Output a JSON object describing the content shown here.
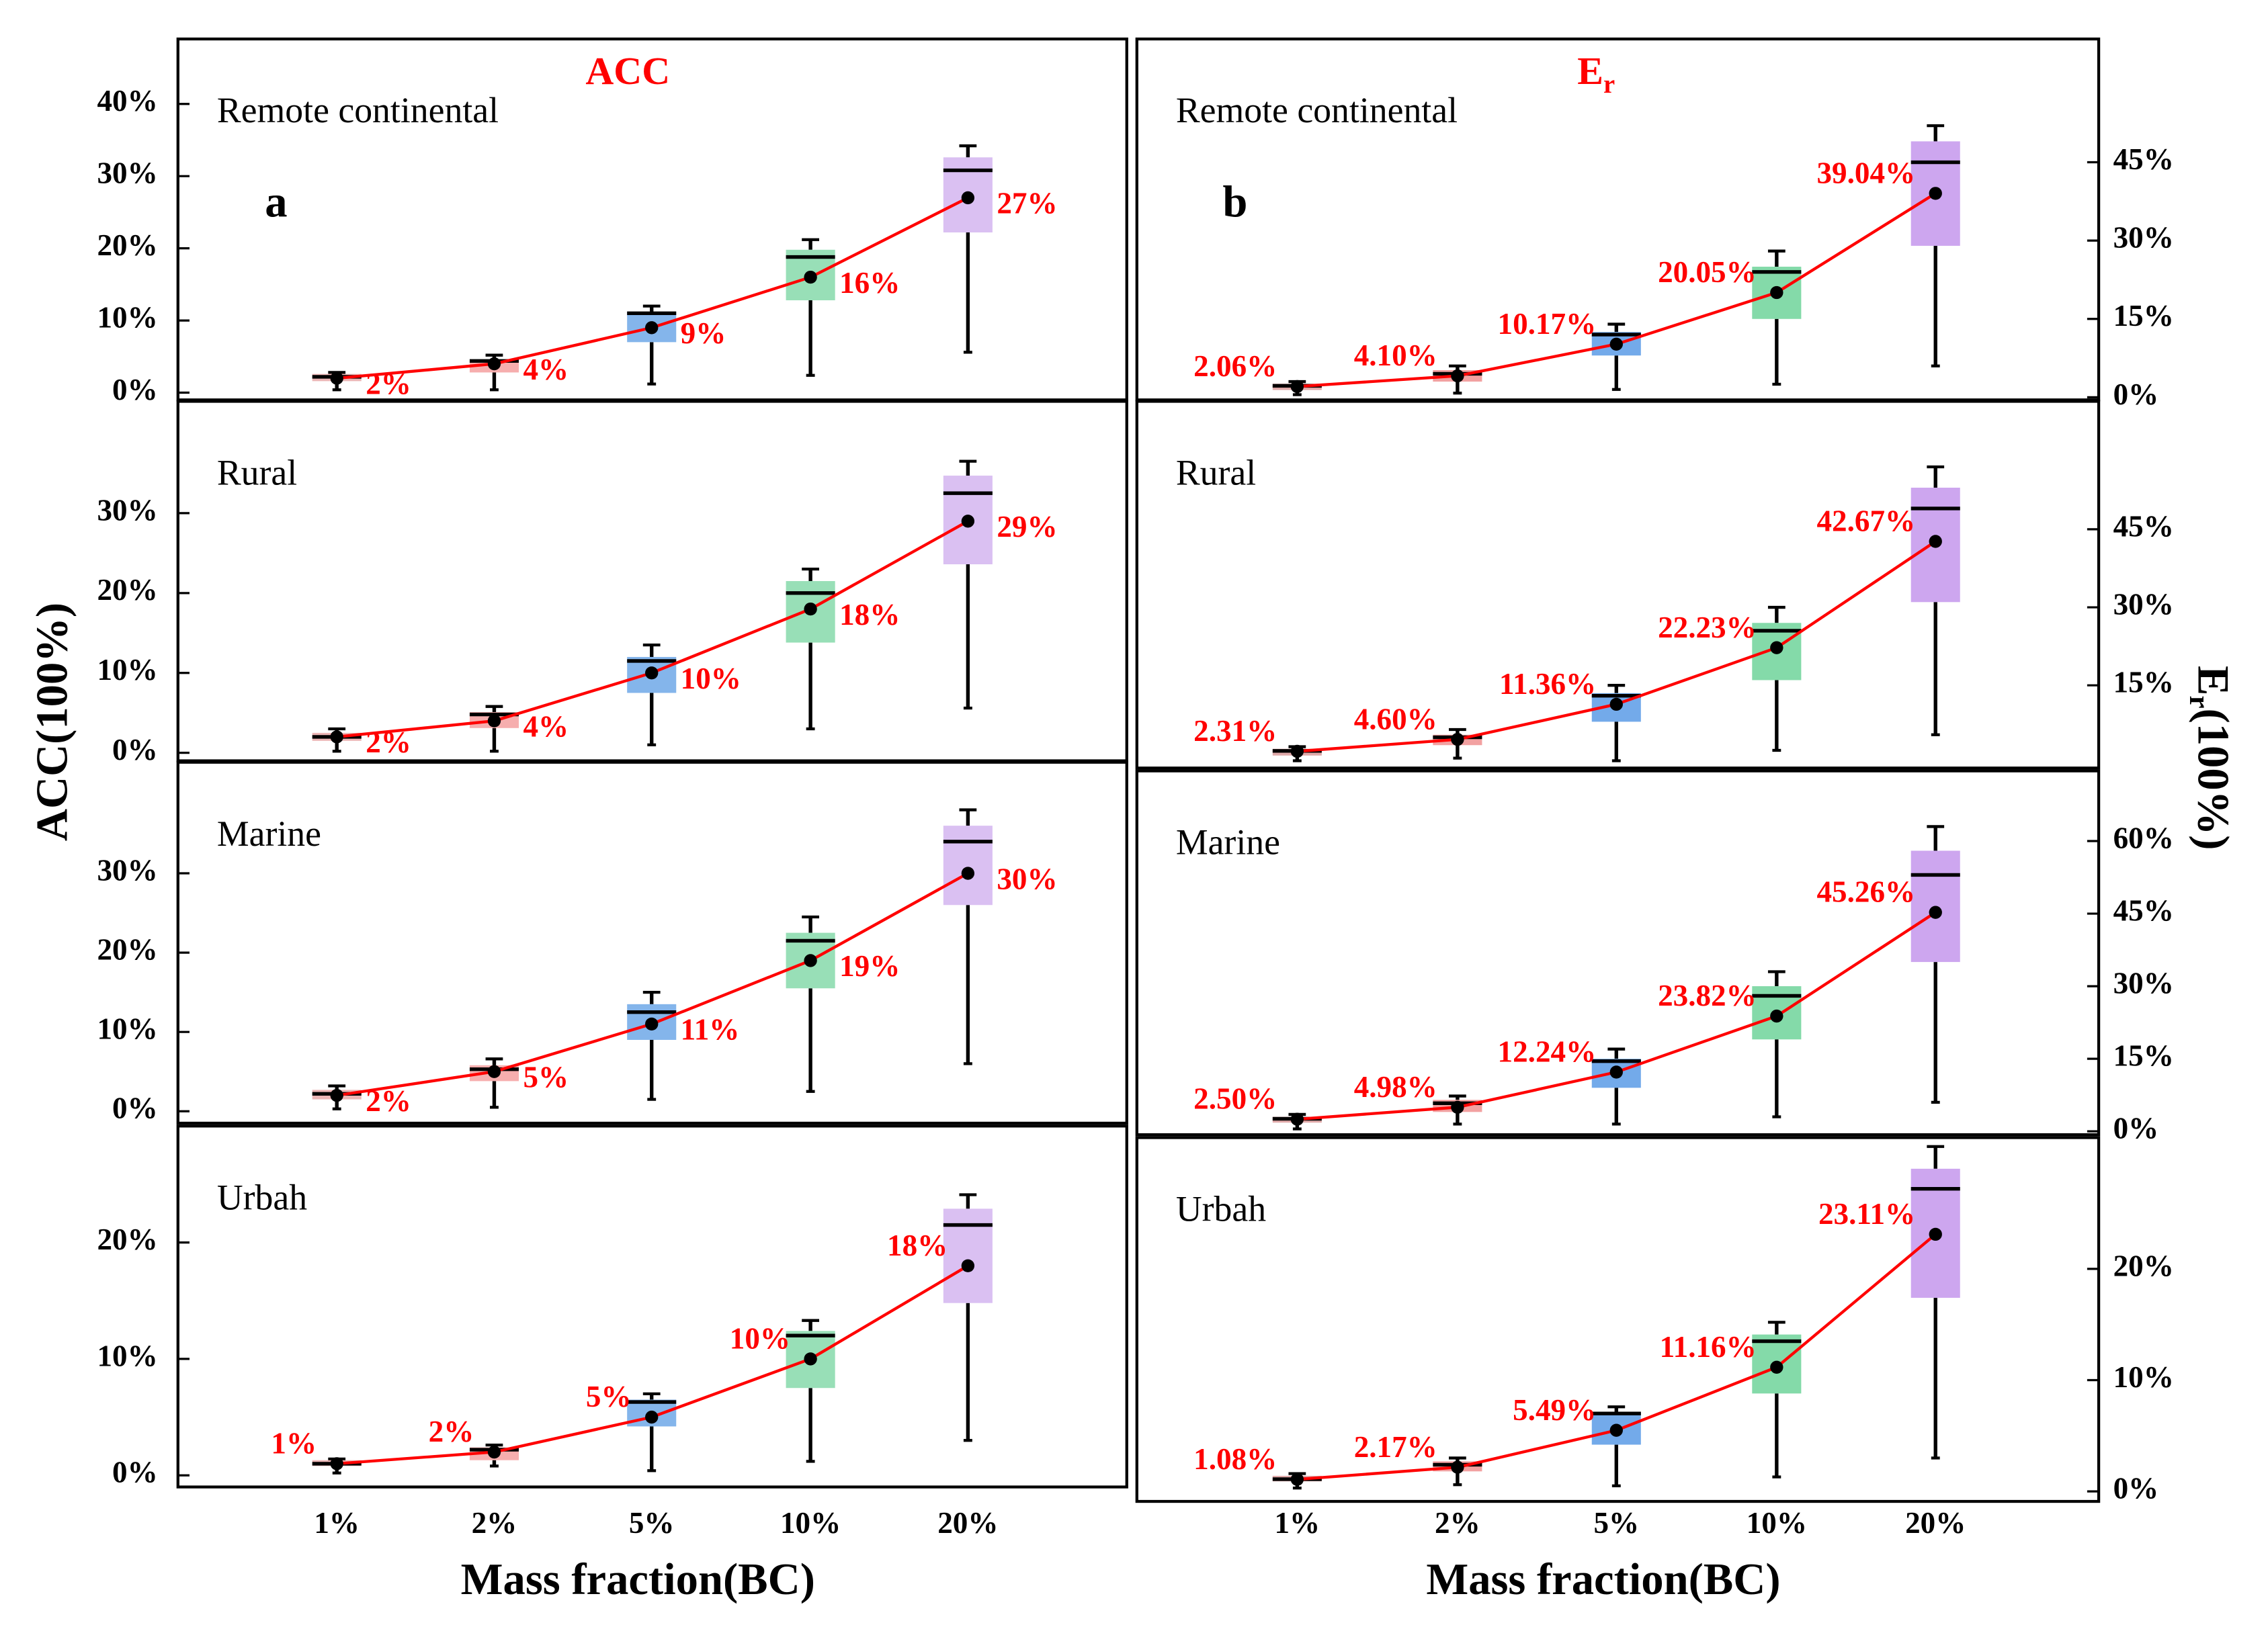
{
  "chart_data": [
    {
      "type": "box",
      "title": "ACC",
      "panel_label": "a",
      "annotation": "Remote continental",
      "ylabel": "ACC(100%)",
      "colors": [
        "#e9a8a8",
        "#f4a0a0",
        "#6fa8e8",
        "#86d9aa",
        "#d4b5f0"
      ],
      "line_color": "#ff0000",
      "whislo": [
        0.4,
        0.4,
        1.2,
        2.4,
        5.6
      ],
      "q1": [
        1.6,
        2.8,
        7,
        12.8,
        22.2
      ],
      "med": [
        2.2,
        4.4,
        11,
        18.8,
        30.8
      ],
      "q3": [
        2.6,
        4.4,
        11.2,
        19.8,
        32.6
      ],
      "whishi": [
        2.8,
        5.2,
        12,
        21.2,
        34.2
      ],
      "values": [
        2,
        4,
        9,
        16,
        27
      ],
      "value_labels": [
        "2%",
        "4%",
        "9%",
        "16%",
        "27%"
      ],
      "ylim": [
        -1,
        49
      ],
      "yticks": [
        {
          "value": 0,
          "label": "0%"
        },
        {
          "value": 10,
          "label": "10%"
        },
        {
          "value": 20,
          "label": "20%"
        },
        {
          "value": 30,
          "label": "30%"
        },
        {
          "value": 40,
          "label": "40%"
        }
      ]
    },
    {
      "type": "box",
      "annotation": "Rural",
      "colors": [
        "#e9a8a8",
        "#f4a0a0",
        "#6fa8e8",
        "#86d9aa",
        "#d4b5f0"
      ],
      "line_color": "#ff0000",
      "whislo": [
        0.2,
        0.2,
        1,
        3,
        5.6
      ],
      "q1": [
        1.5,
        3.1,
        7.5,
        13.8,
        23.6
      ],
      "med": [
        2,
        4.8,
        11.5,
        20,
        32.5
      ],
      "q3": [
        2.5,
        5.1,
        12,
        21.5,
        34.7
      ],
      "whishi": [
        3,
        5.8,
        13.5,
        23,
        36.5
      ],
      "values": [
        2,
        4,
        10,
        18,
        29
      ],
      "value_labels": [
        "2%",
        "4%",
        "10%",
        "18%",
        "29%"
      ],
      "ylim": [
        -1,
        44
      ],
      "yticks": [
        {
          "value": 0,
          "label": "0%"
        },
        {
          "value": 10,
          "label": "10%"
        },
        {
          "value": 20,
          "label": "20%"
        },
        {
          "value": 30,
          "label": "30%"
        }
      ]
    },
    {
      "type": "box",
      "annotation": "Marine",
      "colors": [
        "#e9a8a8",
        "#f4a0a0",
        "#6fa8e8",
        "#86d9aa",
        "#d4b5f0"
      ],
      "line_color": "#ff0000",
      "whislo": [
        0.3,
        0.5,
        1.5,
        2.5,
        6
      ],
      "q1": [
        1.5,
        3.8,
        9,
        15.5,
        26
      ],
      "med": [
        2.2,
        5.3,
        12.5,
        21.5,
        34
      ],
      "q3": [
        2.7,
        5.8,
        13.5,
        22.5,
        36
      ],
      "whishi": [
        3.2,
        6.6,
        15,
        24.5,
        38
      ],
      "values": [
        2,
        5,
        11,
        19,
        30
      ],
      "value_labels": [
        "2%",
        "5%",
        "11%",
        "19%",
        "30%"
      ],
      "ylim": [
        -1.5,
        44
      ],
      "yticks": [
        {
          "value": 0,
          "label": "0%"
        },
        {
          "value": 10,
          "label": "10%"
        },
        {
          "value": 20,
          "label": "20%"
        },
        {
          "value": 30,
          "label": "30%"
        }
      ]
    },
    {
      "type": "box",
      "annotation": "Urbah",
      "categories": [
        "1%",
        "2%",
        "5%",
        "10%",
        "20%"
      ],
      "xlabel": "Mass fraction(BC)",
      "colors": [
        "#e9a8a8",
        "#f4a0a0",
        "#6fa8e8",
        "#86d9aa",
        "#d4b5f0"
      ],
      "line_color": "#ff0000",
      "whislo": [
        0.2,
        0.8,
        0.4,
        1.2,
        3
      ],
      "q1": [
        0.8,
        1.3,
        4.2,
        7.5,
        14.8
      ],
      "med": [
        1,
        2.2,
        6.3,
        12,
        21.5
      ],
      "q3": [
        1.3,
        2.4,
        6.5,
        12.4,
        22.9
      ],
      "whishi": [
        1.4,
        2.6,
        7,
        13.3,
        24.1
      ],
      "values": [
        1,
        2,
        5,
        10,
        18
      ],
      "value_labels": [
        "1%",
        "2%",
        "5%",
        "10%",
        "18%"
      ],
      "ylim": [
        -1,
        30
      ],
      "yticks": [
        {
          "value": 0,
          "label": "0%"
        },
        {
          "value": 10,
          "label": "10%"
        },
        {
          "value": 20,
          "label": "20%"
        }
      ]
    },
    {
      "type": "box",
      "title": "E",
      "title_sub": "r",
      "panel_label": "b",
      "annotation": "Remote continental",
      "ylabel": "E",
      "ylabel_sub": "r",
      "ylabel_rest": "(100%)",
      "colors": [
        "#d99a9a",
        "#f09090",
        "#5b9be6",
        "#6fd49a",
        "#c497ec"
      ],
      "line_color": "#ff0000",
      "whislo": [
        0.5,
        0.8,
        1.5,
        2.5,
        6
      ],
      "q1": [
        1.4,
        3,
        8,
        15,
        29
      ],
      "med": [
        2.2,
        4.5,
        12,
        24,
        45
      ],
      "q3": [
        2.6,
        5.2,
        12.5,
        25,
        49
      ],
      "whishi": [
        3,
        6,
        14,
        28,
        52
      ],
      "values": [
        2.06,
        4.1,
        10.17,
        20.05,
        39.04
      ],
      "value_labels": [
        "2.06%",
        "4.10%",
        "10.17%",
        "20.05%",
        "39.04%"
      ],
      "ylim": [
        -0.5,
        68.6
      ],
      "yticks": [
        {
          "value": 0,
          "label": "0%"
        },
        {
          "value": 15,
          "label": "15%"
        },
        {
          "value": 30,
          "label": "30%"
        },
        {
          "value": 45,
          "label": "45%"
        }
      ]
    },
    {
      "type": "box",
      "annotation": "Rural",
      "colors": [
        "#d99a9a",
        "#f09090",
        "#5b9be6",
        "#6fd49a",
        "#c497ec"
      ],
      "line_color": "#ff0000",
      "whislo": [
        0.5,
        1,
        0.5,
        2.5,
        5.5
      ],
      "q1": [
        1.5,
        3.5,
        8,
        16,
        31
      ],
      "med": [
        2.4,
        5,
        13,
        25.5,
        49
      ],
      "q3": [
        2.8,
        5.5,
        13.5,
        27,
        53
      ],
      "whishi": [
        3.2,
        6.5,
        15,
        30,
        57
      ],
      "values": [
        2.31,
        4.6,
        11.36,
        22.23,
        42.67
      ],
      "value_labels": [
        "2.31%",
        "4.60%",
        "11.36%",
        "22.23%",
        "42.67%"
      ],
      "ylim": [
        -0.9,
        69.6
      ],
      "yticks": [
        {
          "value": 15,
          "label": "15%"
        },
        {
          "value": 30,
          "label": "30%"
        },
        {
          "value": 45,
          "label": "45%"
        }
      ]
    },
    {
      "type": "box",
      "annotation": "Marine",
      "colors": [
        "#d99a9a",
        "#f09090",
        "#5b9be6",
        "#6fd49a",
        "#c497ec"
      ],
      "line_color": "#ff0000",
      "whislo": [
        0.5,
        1.5,
        1.5,
        3,
        6
      ],
      "q1": [
        1.8,
        4,
        9,
        19,
        35
      ],
      "med": [
        2.6,
        5.8,
        14.5,
        28,
        53
      ],
      "q3": [
        3,
        6.5,
        15,
        30,
        58
      ],
      "whishi": [
        3.5,
        7.3,
        17,
        33,
        63
      ],
      "values": [
        2.5,
        4.98,
        12.24,
        23.82,
        45.26
      ],
      "value_labels": [
        "2.50%",
        "4.98%",
        "12.24%",
        "23.82%",
        "45.26%"
      ],
      "ylim": [
        -0.7,
        74.5
      ],
      "yticks": [
        {
          "value": 0,
          "label": "0%"
        },
        {
          "value": 15,
          "label": "15%"
        },
        {
          "value": 30,
          "label": "30%"
        },
        {
          "value": 45,
          "label": "45%"
        },
        {
          "value": 60,
          "label": "60%"
        }
      ]
    },
    {
      "type": "box",
      "annotation": "Urbah",
      "categories": [
        "1%",
        "2%",
        "5%",
        "10%",
        "20%"
      ],
      "xlabel": "Mass fraction(BC)",
      "colors": [
        "#d99a9a",
        "#f09090",
        "#5b9be6",
        "#6fd49a",
        "#c497ec"
      ],
      "line_color": "#ff0000",
      "whislo": [
        0.3,
        0.6,
        0.5,
        1.3,
        3
      ],
      "q1": [
        0.9,
        1.8,
        4.2,
        8.8,
        17.4
      ],
      "med": [
        1.1,
        2.4,
        7,
        13.5,
        27.2
      ],
      "q3": [
        1.4,
        2.7,
        7.1,
        14.1,
        29
      ],
      "whishi": [
        1.6,
        3,
        7.6,
        15.2,
        31
      ],
      "values": [
        1.08,
        2.17,
        5.49,
        11.16,
        23.11
      ],
      "value_labels": [
        "1.08%",
        "2.17%",
        "5.49%",
        "11.16%",
        "23.11%"
      ],
      "ylim": [
        -0.9,
        31.8
      ],
      "yticks": [
        {
          "value": 0,
          "label": "0%"
        },
        {
          "value": 10,
          "label": "10%"
        },
        {
          "value": 20,
          "label": "20%"
        }
      ]
    }
  ]
}
